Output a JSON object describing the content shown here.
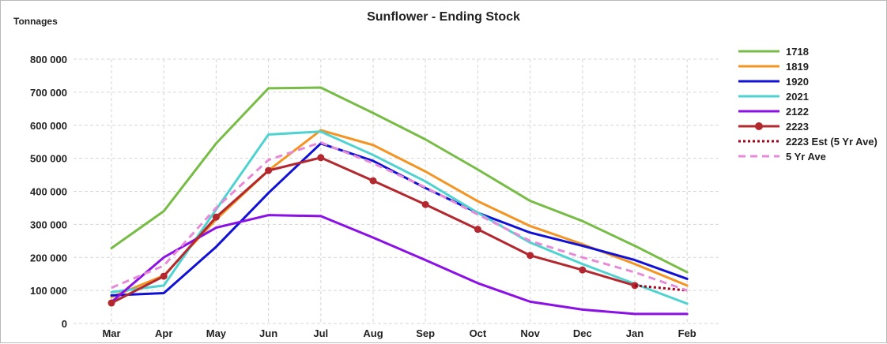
{
  "chart_data": {
    "type": "line",
    "title": "Sunflower - Ending Stock",
    "ylabel": "Tonnages",
    "xlabel": "",
    "ylim": [
      0,
      800000
    ],
    "yticks": [
      0,
      100000,
      200000,
      300000,
      400000,
      500000,
      600000,
      700000,
      800000
    ],
    "ytick_labels": [
      "0",
      "100 000",
      "200 000",
      "300 000",
      "400 000",
      "500 000",
      "600 000",
      "700 000",
      "800 000"
    ],
    "grid": true,
    "legend_position": "right",
    "categories": [
      "Mar",
      "Apr",
      "May",
      "Jun",
      "Jul",
      "Aug",
      "Sep",
      "Oct",
      "Nov",
      "Dec",
      "Jan",
      "Feb"
    ],
    "series": [
      {
        "name": "1718",
        "color": "#76bc45",
        "style": "solid",
        "values": [
          228000,
          340000,
          545000,
          712000,
          714000,
          637000,
          557000,
          466000,
          371000,
          310000,
          235000,
          155000
        ]
      },
      {
        "name": "1819",
        "color": "#f39423",
        "style": "solid",
        "values": [
          80000,
          145000,
          315000,
          463000,
          585000,
          540000,
          460000,
          370000,
          295000,
          240000,
          180000,
          115000
        ]
      },
      {
        "name": "1920",
        "color": "#1010d6",
        "style": "solid",
        "values": [
          85000,
          92000,
          232000,
          395000,
          545000,
          492000,
          410000,
          335000,
          275000,
          235000,
          192000,
          135000
        ]
      },
      {
        "name": "2021",
        "color": "#4fd3d0",
        "style": "solid",
        "values": [
          95000,
          115000,
          345000,
          572000,
          581000,
          510000,
          430000,
          335000,
          245000,
          180000,
          120000,
          60000
        ]
      },
      {
        "name": "2122",
        "color": "#8b10e6",
        "style": "solid",
        "values": [
          65000,
          200000,
          290000,
          328000,
          325000,
          260000,
          192000,
          122000,
          66000,
          42000,
          29000,
          29000
        ]
      },
      {
        "name": "2223",
        "color": "#b3282e",
        "style": "markers",
        "values": [
          62000,
          143000,
          322000,
          463000,
          502000,
          432000,
          360000,
          285000,
          206000,
          162000,
          115000,
          null
        ]
      },
      {
        "name": "2223 Est (5 Yr Ave)",
        "color": "#a3001a",
        "style": "dotted",
        "values": [
          null,
          null,
          null,
          null,
          null,
          null,
          null,
          null,
          null,
          null,
          115000,
          100000
        ]
      },
      {
        "name": "5 Yr Ave",
        "color": "#e78ad8",
        "style": "dashed",
        "values": [
          108000,
          175000,
          350000,
          495000,
          548000,
          485000,
          412000,
          330000,
          250000,
          200000,
          155000,
          100000
        ]
      }
    ]
  }
}
